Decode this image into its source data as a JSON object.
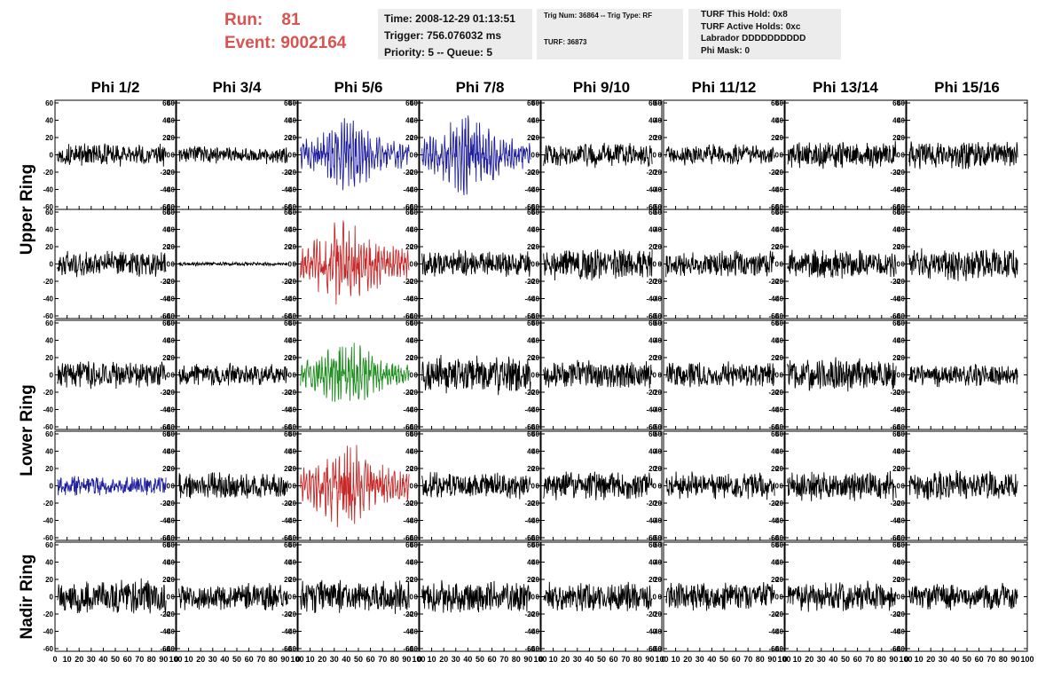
{
  "run_info": {
    "run_label": "Run:",
    "run_value": "81",
    "event_label": "Event:",
    "event_value": "9002164"
  },
  "info_box_1": {
    "time": "Time: 2008-12-29 01:13:51",
    "trigger": "Trigger: 756.076032 ms",
    "priority": "Priority: 5 -- Queue: 5"
  },
  "info_box_2": {
    "trig": "Trig Num: 36864 -- Trig Type: RF",
    "turf": "TURF: 36873"
  },
  "info_box_3": {
    "this_hold": "TURF This Hold: 0x8",
    "active_holds": "TURF Active Holds: 0xc",
    "labrador": "Labrador DDDDDDDDDD",
    "phi_mask": "Phi Mask: 0"
  },
  "chart_data": {
    "type": "line",
    "columns": [
      "Phi 1/2",
      "Phi 3/4",
      "Phi 5/6",
      "Phi 7/8",
      "Phi 9/10",
      "Phi 11/12",
      "Phi 13/14",
      "Phi 15/16"
    ],
    "ring_labels": [
      "Upper Ring",
      "Lower Ring",
      "Nadir Ring"
    ],
    "ring_row_spans": [
      [
        0,
        1
      ],
      [
        2,
        3
      ],
      [
        4,
        4
      ]
    ],
    "xlim": [
      0,
      100
    ],
    "ylim": [
      -60,
      60
    ],
    "x_ticks": [
      0,
      10,
      20,
      30,
      40,
      50,
      60,
      70,
      80,
      90,
      100
    ],
    "x_tick_labels": [
      "0",
      "10",
      "20",
      "30",
      "40",
      "50",
      "60",
      "70",
      "80",
      "90",
      "100"
    ],
    "y_ticks": [
      -60,
      -40,
      -20,
      0,
      20,
      40,
      60
    ],
    "y_tick_labels": [
      "-60",
      "-40",
      "-20",
      "0",
      "20",
      "40",
      "60"
    ],
    "colors": {
      "default": "#000000",
      "blue": "#1f1fa0",
      "red": "#c62828",
      "green": "#1e8c1e",
      "run_text": "#d9534f",
      "box_bg": "#ececec"
    },
    "panels": [
      {
        "row": 0,
        "col": 0,
        "color": "default",
        "amplitude": 12,
        "style": "noise"
      },
      {
        "row": 0,
        "col": 1,
        "color": "default",
        "amplitude": 9,
        "style": "noise"
      },
      {
        "row": 0,
        "col": 2,
        "color": "blue",
        "amplitude": 28,
        "style": "pulse"
      },
      {
        "row": 0,
        "col": 3,
        "color": "blue",
        "amplitude": 30,
        "style": "pulse"
      },
      {
        "row": 0,
        "col": 4,
        "color": "default",
        "amplitude": 13,
        "style": "noise"
      },
      {
        "row": 0,
        "col": 5,
        "color": "default",
        "amplitude": 11,
        "style": "noise"
      },
      {
        "row": 0,
        "col": 6,
        "color": "default",
        "amplitude": 14,
        "style": "noise"
      },
      {
        "row": 0,
        "col": 7,
        "color": "default",
        "amplitude": 15,
        "style": "noise"
      },
      {
        "row": 1,
        "col": 0,
        "color": "default",
        "amplitude": 14,
        "style": "noise"
      },
      {
        "row": 1,
        "col": 1,
        "color": "default",
        "amplitude": 2,
        "style": "noise"
      },
      {
        "row": 1,
        "col": 2,
        "color": "red",
        "amplitude": 34,
        "style": "pulse"
      },
      {
        "row": 1,
        "col": 3,
        "color": "default",
        "amplitude": 14,
        "style": "noise"
      },
      {
        "row": 1,
        "col": 4,
        "color": "default",
        "amplitude": 17,
        "style": "noise"
      },
      {
        "row": 1,
        "col": 5,
        "color": "default",
        "amplitude": 14,
        "style": "noise"
      },
      {
        "row": 1,
        "col": 6,
        "color": "default",
        "amplitude": 15,
        "style": "noise"
      },
      {
        "row": 1,
        "col": 7,
        "color": "default",
        "amplitude": 17,
        "style": "noise"
      },
      {
        "row": 2,
        "col": 0,
        "color": "default",
        "amplitude": 15,
        "style": "noise"
      },
      {
        "row": 2,
        "col": 1,
        "color": "default",
        "amplitude": 12,
        "style": "noise"
      },
      {
        "row": 2,
        "col": 2,
        "color": "green",
        "amplitude": 25,
        "style": "pulse"
      },
      {
        "row": 2,
        "col": 3,
        "color": "default",
        "amplitude": 20,
        "style": "noise"
      },
      {
        "row": 2,
        "col": 4,
        "color": "default",
        "amplitude": 15,
        "style": "noise"
      },
      {
        "row": 2,
        "col": 5,
        "color": "default",
        "amplitude": 14,
        "style": "noise"
      },
      {
        "row": 2,
        "col": 6,
        "color": "default",
        "amplitude": 18,
        "style": "noise"
      },
      {
        "row": 2,
        "col": 7,
        "color": "default",
        "amplitude": 12,
        "style": "noise"
      },
      {
        "row": 3,
        "col": 0,
        "color": "blue",
        "amplitude": 10,
        "style": "noise"
      },
      {
        "row": 3,
        "col": 1,
        "color": "default",
        "amplitude": 14,
        "style": "noise"
      },
      {
        "row": 3,
        "col": 2,
        "color": "red",
        "amplitude": 34,
        "style": "pulse"
      },
      {
        "row": 3,
        "col": 3,
        "color": "default",
        "amplitude": 14,
        "style": "noise"
      },
      {
        "row": 3,
        "col": 4,
        "color": "default",
        "amplitude": 15,
        "style": "noise"
      },
      {
        "row": 3,
        "col": 5,
        "color": "default",
        "amplitude": 14,
        "style": "noise"
      },
      {
        "row": 3,
        "col": 6,
        "color": "default",
        "amplitude": 16,
        "style": "noise"
      },
      {
        "row": 3,
        "col": 7,
        "color": "default",
        "amplitude": 16,
        "style": "noise"
      },
      {
        "row": 4,
        "col": 0,
        "color": "default",
        "amplitude": 18,
        "style": "noise"
      },
      {
        "row": 4,
        "col": 1,
        "color": "default",
        "amplitude": 14,
        "style": "noise"
      },
      {
        "row": 4,
        "col": 2,
        "color": "default",
        "amplitude": 18,
        "style": "noise"
      },
      {
        "row": 4,
        "col": 3,
        "color": "default",
        "amplitude": 17,
        "style": "noise"
      },
      {
        "row": 4,
        "col": 4,
        "color": "default",
        "amplitude": 15,
        "style": "noise"
      },
      {
        "row": 4,
        "col": 5,
        "color": "default",
        "amplitude": 16,
        "style": "noise"
      },
      {
        "row": 4,
        "col": 6,
        "color": "default",
        "amplitude": 16,
        "style": "noise"
      },
      {
        "row": 4,
        "col": 7,
        "color": "default",
        "amplitude": 14,
        "style": "noise"
      }
    ]
  }
}
